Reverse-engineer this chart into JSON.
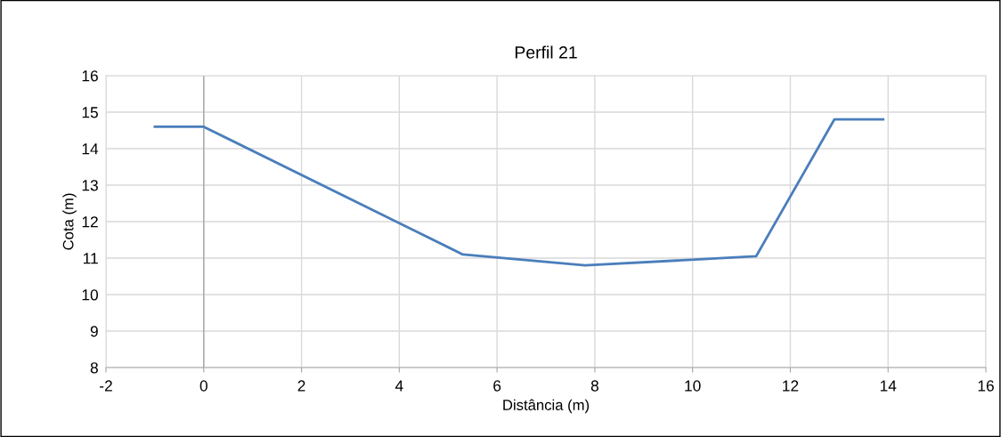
{
  "chart_data": {
    "type": "line",
    "title": "Perfil 21",
    "xlabel": "Distância (m)",
    "ylabel": "Cota (m)",
    "x": [
      -1,
      0,
      5.3,
      7.8,
      11.3,
      12.9,
      13.9
    ],
    "series": [
      {
        "color": "#4a7ebb",
        "values": [
          14.6,
          14.6,
          11.1,
          10.8,
          11.05,
          14.8,
          14.8
        ]
      }
    ],
    "xlim": [
      -2,
      16
    ],
    "xticks": [
      -2,
      0,
      2,
      4,
      6,
      8,
      10,
      12,
      14,
      16
    ],
    "ylim": [
      8,
      16
    ],
    "yticks": [
      8,
      9,
      10,
      11,
      12,
      13,
      14,
      15,
      16
    ],
    "grid": true,
    "legend": false,
    "marker": "none",
    "line_style": "solid",
    "ref_lines": [
      {
        "axis": "x",
        "value": 0,
        "color": "#a6a6a6"
      }
    ]
  }
}
